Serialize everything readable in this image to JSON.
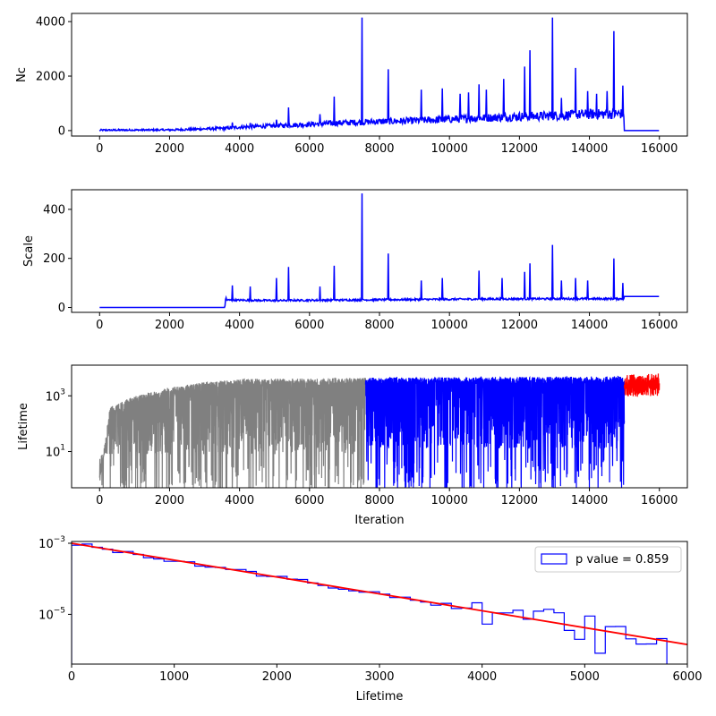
{
  "figure": {
    "background": "#ffffff"
  },
  "chart_data": [
    {
      "type": "line",
      "ylabel": "Nc",
      "xlabel": "",
      "xlim": [
        -800,
        16800
      ],
      "ylim": [
        -200,
        4300
      ],
      "x_ticks": [
        0,
        2000,
        4000,
        6000,
        8000,
        10000,
        12000,
        14000,
        16000
      ],
      "x_tick_labels": [
        "0",
        "2000",
        "4000",
        "6000",
        "8000",
        "10000",
        "12000",
        "14000",
        "16000"
      ],
      "y_ticks": [
        0,
        2000,
        4000
      ],
      "y_tick_labels": [
        "0",
        "2000",
        "4000"
      ],
      "color": "#0000ff",
      "baseline_points": [
        [
          0,
          10
        ],
        [
          2000,
          20
        ],
        [
          3600,
          80
        ],
        [
          4000,
          120
        ],
        [
          5000,
          170
        ],
        [
          6000,
          220
        ],
        [
          7000,
          280
        ],
        [
          8000,
          320
        ],
        [
          9000,
          350
        ],
        [
          10000,
          400
        ],
        [
          11000,
          450
        ],
        [
          12000,
          500
        ],
        [
          13000,
          530
        ],
        [
          14000,
          580
        ],
        [
          14990,
          600
        ],
        [
          15000,
          0
        ],
        [
          16000,
          0
        ]
      ],
      "noise_amplitude": 160,
      "spikes": [
        [
          3800,
          300
        ],
        [
          4300,
          280
        ],
        [
          5050,
          400
        ],
        [
          5400,
          850
        ],
        [
          6300,
          600
        ],
        [
          6700,
          1250
        ],
        [
          7500,
          4150
        ],
        [
          8250,
          2250
        ],
        [
          9200,
          1500
        ],
        [
          9800,
          1550
        ],
        [
          10300,
          1350
        ],
        [
          10550,
          1400
        ],
        [
          10850,
          1700
        ],
        [
          11050,
          1500
        ],
        [
          11550,
          1900
        ],
        [
          12150,
          2350
        ],
        [
          12300,
          2950
        ],
        [
          12950,
          4150
        ],
        [
          13200,
          1200
        ],
        [
          13600,
          2300
        ],
        [
          13950,
          1450
        ],
        [
          14200,
          1350
        ],
        [
          14500,
          1450
        ],
        [
          14700,
          3650
        ],
        [
          14950,
          1650
        ]
      ]
    },
    {
      "type": "line",
      "ylabel": "Scale",
      "xlabel": "",
      "xlim": [
        -800,
        16800
      ],
      "ylim": [
        -20,
        480
      ],
      "x_ticks": [
        0,
        2000,
        4000,
        6000,
        8000,
        10000,
        12000,
        14000,
        16000
      ],
      "x_tick_labels": [
        "0",
        "2000",
        "4000",
        "6000",
        "8000",
        "10000",
        "12000",
        "14000",
        "16000"
      ],
      "y_ticks": [
        0,
        200,
        400
      ],
      "y_tick_labels": [
        "0",
        "200",
        "400"
      ],
      "color": "#0000ff",
      "baseline_points": [
        [
          0,
          0
        ],
        [
          3580,
          0
        ],
        [
          3600,
          30
        ],
        [
          5000,
          28
        ],
        [
          7000,
          30
        ],
        [
          9000,
          32
        ],
        [
          11000,
          34
        ],
        [
          13000,
          35
        ],
        [
          14990,
          35
        ],
        [
          15000,
          45
        ],
        [
          16000,
          45
        ]
      ],
      "noise_amplitude": 15,
      "spikes": [
        [
          3620,
          40
        ],
        [
          3800,
          90
        ],
        [
          4300,
          85
        ],
        [
          5050,
          120
        ],
        [
          5400,
          165
        ],
        [
          6300,
          85
        ],
        [
          6700,
          170
        ],
        [
          7500,
          465
        ],
        [
          8250,
          220
        ],
        [
          9200,
          110
        ],
        [
          9800,
          120
        ],
        [
          10850,
          150
        ],
        [
          11500,
          120
        ],
        [
          12150,
          145
        ],
        [
          12300,
          180
        ],
        [
          12950,
          255
        ],
        [
          13200,
          110
        ],
        [
          13600,
          120
        ],
        [
          13950,
          110
        ],
        [
          14700,
          200
        ],
        [
          14950,
          100
        ]
      ]
    },
    {
      "type": "line",
      "ylabel": "Lifetime",
      "xlabel": "Iteration",
      "yscale": "log",
      "xlim": [
        -800,
        16800
      ],
      "ylim_log10": [
        -0.3,
        4.1
      ],
      "x_ticks": [
        0,
        2000,
        4000,
        6000,
        8000,
        10000,
        12000,
        14000,
        16000
      ],
      "x_tick_labels": [
        "0",
        "2000",
        "4000",
        "6000",
        "8000",
        "10000",
        "12000",
        "14000",
        "16000"
      ],
      "y_ticks_log10": [
        1,
        3
      ],
      "y_tick_labels": [
        "10",
        "10"
      ],
      "y_tick_exponents": [
        "1",
        "3"
      ],
      "segments": [
        {
          "start": 0,
          "end": 7600,
          "color": "#808080",
          "envelope_log10": [
            [
              0,
              0.0
            ],
            [
              300,
              2.6
            ],
            [
              1000,
              3.0
            ],
            [
              2000,
              3.3
            ],
            [
              3000,
              3.5
            ],
            [
              4000,
              3.6
            ],
            [
              7600,
              3.65
            ]
          ],
          "floor_log10": 0.5
        },
        {
          "start": 7600,
          "end": 15000,
          "color": "#0000ff",
          "envelope_log10": [
            [
              7600,
              3.65
            ],
            [
              15000,
              3.7
            ]
          ],
          "floor_log10": 0.7
        },
        {
          "start": 15000,
          "end": 16000,
          "color": "#ff0000",
          "envelope_log10": [
            [
              15000,
              3.75
            ],
            [
              16000,
              3.8
            ]
          ],
          "floor_log10": 2.9
        }
      ]
    },
    {
      "type": "histogram",
      "xlabel": "Lifetime",
      "ylabel": "",
      "yscale": "log",
      "xlim": [
        0,
        6000
      ],
      "ylim_log10": [
        -6.4,
        -2.95
      ],
      "x_ticks": [
        0,
        1000,
        2000,
        3000,
        4000,
        5000,
        6000
      ],
      "x_tick_labels": [
        "0",
        "1000",
        "2000",
        "3000",
        "4000",
        "5000",
        "6000"
      ],
      "y_ticks_log10": [
        -5,
        -3
      ],
      "y_tick_labels": [
        "10",
        "10"
      ],
      "y_tick_exponents": [
        "−5",
        "−3"
      ],
      "bin_width": 100,
      "hist_color": "#0000ff",
      "fit_color": "#ff0000",
      "fit_line_log10": [
        [
          0,
          -3.0
        ],
        [
          6000,
          -5.85
        ]
      ],
      "hist_deviations": [
        [
          3900,
          4000,
          0.2
        ],
        [
          4000,
          4100,
          -0.35
        ],
        [
          4300,
          4400,
          0.18
        ],
        [
          4500,
          4600,
          0.25
        ],
        [
          4600,
          4700,
          0.35
        ],
        [
          4700,
          4800,
          0.3
        ],
        [
          4800,
          4900,
          -0.15
        ],
        [
          4900,
          5000,
          -0.35
        ],
        [
          5000,
          5100,
          0.35
        ],
        [
          5100,
          5200,
          -0.65
        ],
        [
          5200,
          5300,
          0.15
        ],
        [
          5300,
          5400,
          0.2
        ],
        [
          5400,
          5500,
          -0.1
        ],
        [
          5500,
          5600,
          -0.2
        ],
        [
          5600,
          5700,
          -0.15
        ],
        [
          5700,
          5800,
          0.05
        ]
      ],
      "hist_end": 5800,
      "legend": {
        "label": "p value = 0.859",
        "position": "upper right"
      }
    }
  ]
}
